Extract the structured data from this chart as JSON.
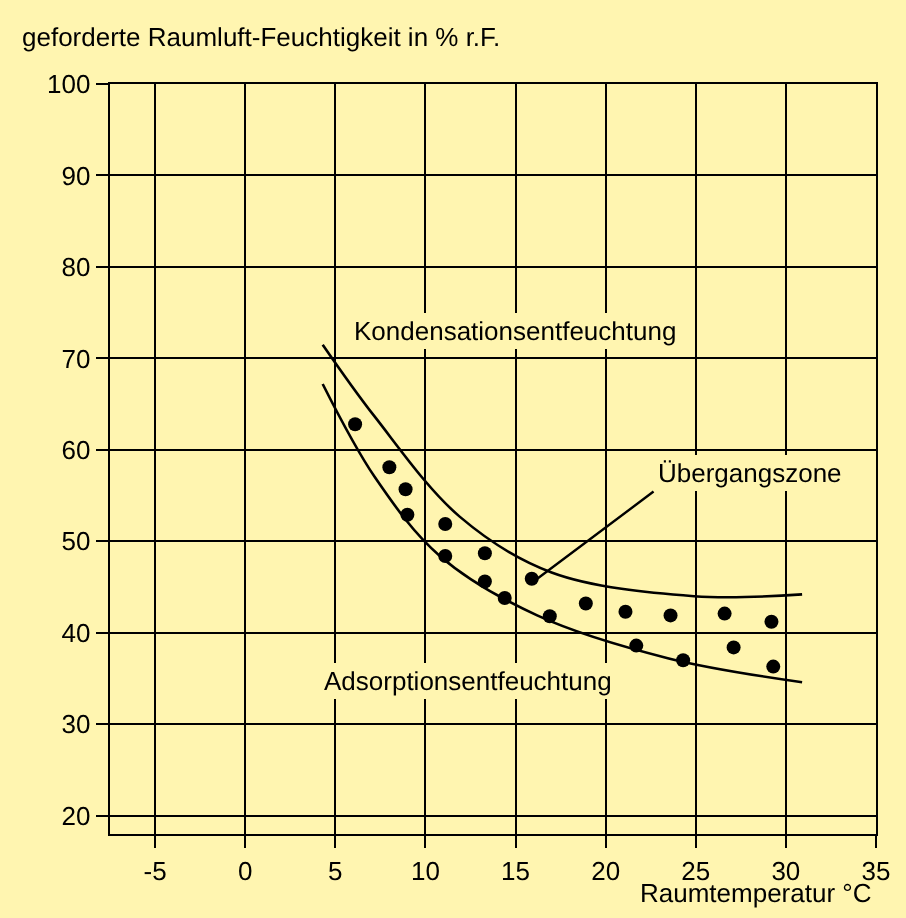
{
  "chart_data": {
    "type": "scatter",
    "ylabel": "geforderte Raumluft-Feuchtigkeit in % r.F.",
    "xlabel": "Raumtemperatur °C",
    "xlim": [
      -7.5,
      35
    ],
    "xticks": [
      -5,
      0,
      5,
      10,
      15,
      20,
      25,
      30,
      35
    ],
    "ylim": [
      18,
      100
    ],
    "yticks": [
      20,
      30,
      40,
      50,
      60,
      70,
      80,
      90,
      100
    ],
    "grid": true,
    "legend": false,
    "series": [
      {
        "type": "line",
        "color": "#000000",
        "marker": "none",
        "x": [
          4.3,
          7.2,
          11.9,
          17.0,
          24.9,
          30.9
        ],
        "values": [
          71.5,
          63.6,
          52.7,
          46.6,
          44.0,
          44.2
        ]
      },
      {
        "type": "line",
        "color": "#000000",
        "marker": "none",
        "x": [
          4.3,
          7.2,
          10.8,
          16.2,
          23.5,
          30.9
        ],
        "values": [
          67.2,
          57.0,
          48.4,
          41.9,
          37.2,
          34.6
        ]
      },
      {
        "color": "#000000",
        "marker": "circle",
        "x": [
          6.1,
          8.0,
          8.9,
          9.0,
          11.1,
          11.1,
          13.3,
          13.3,
          14.4,
          15.9,
          16.9,
          18.9,
          21.1,
          21.7,
          23.6,
          24.3,
          26.6,
          27.1,
          29.2,
          29.3
        ],
        "values": [
          62.8,
          58.1,
          55.7,
          52.9,
          51.9,
          48.4,
          48.7,
          45.6,
          43.8,
          45.9,
          41.8,
          43.2,
          42.3,
          38.6,
          41.9,
          37.0,
          42.1,
          38.4,
          41.2,
          36.3
        ]
      }
    ],
    "annotations": [
      "Kondensationsentfeuchtung",
      {
        "text": "Übergangszone",
        "x": 16.0,
        "y": 45.6
      },
      "Adsorptionsentfeuchtung"
    ]
  }
}
